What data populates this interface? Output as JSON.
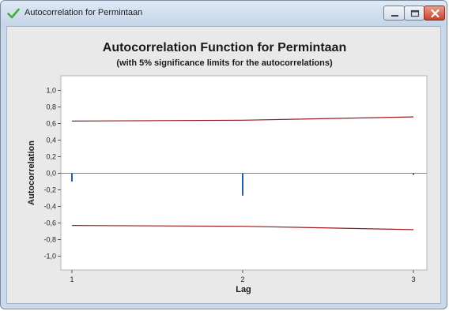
{
  "window": {
    "title": "Autocorrelation for Permintaan",
    "icon": "checkmark-icon",
    "buttons": [
      "minimize-icon",
      "maximize-icon",
      "close-icon"
    ]
  },
  "chart_data": {
    "type": "bar",
    "title": "Autocorrelation Function for Permintaan",
    "subtitle": "(with 5% significance limits for the autocorrelations)",
    "xlabel": "Lag",
    "ylabel": "Autocorrelation",
    "x": [
      1,
      2,
      3
    ],
    "values": [
      -0.1,
      -0.27,
      -0.02
    ],
    "xlim": [
      1,
      3
    ],
    "ylim": [
      -1.1,
      1.1
    ],
    "x_ticks": [
      1,
      2,
      3
    ],
    "x_tick_labels": [
      "1",
      "2",
      "3"
    ],
    "y_ticks": [
      1.0,
      0.8,
      0.6,
      0.4,
      0.2,
      0.0,
      -0.2,
      -0.4,
      -0.6,
      -0.8,
      -1.0
    ],
    "y_tick_labels": [
      "1,0",
      "0,8",
      "0,6",
      "0,4",
      "0,2",
      "0,0",
      "-0,2",
      "-0,4",
      "-0,6",
      "-0,8",
      "-1,0"
    ],
    "significance_limits": {
      "lags": [
        1,
        2,
        3
      ],
      "upper": [
        0.63,
        0.64,
        0.68
      ],
      "lower": [
        -0.63,
        -0.64,
        -0.68
      ]
    },
    "grid": false,
    "colors": {
      "bar": "#1f5fa6",
      "limit": "#9a1b1b",
      "zero_line": "#5a8ec8"
    }
  }
}
